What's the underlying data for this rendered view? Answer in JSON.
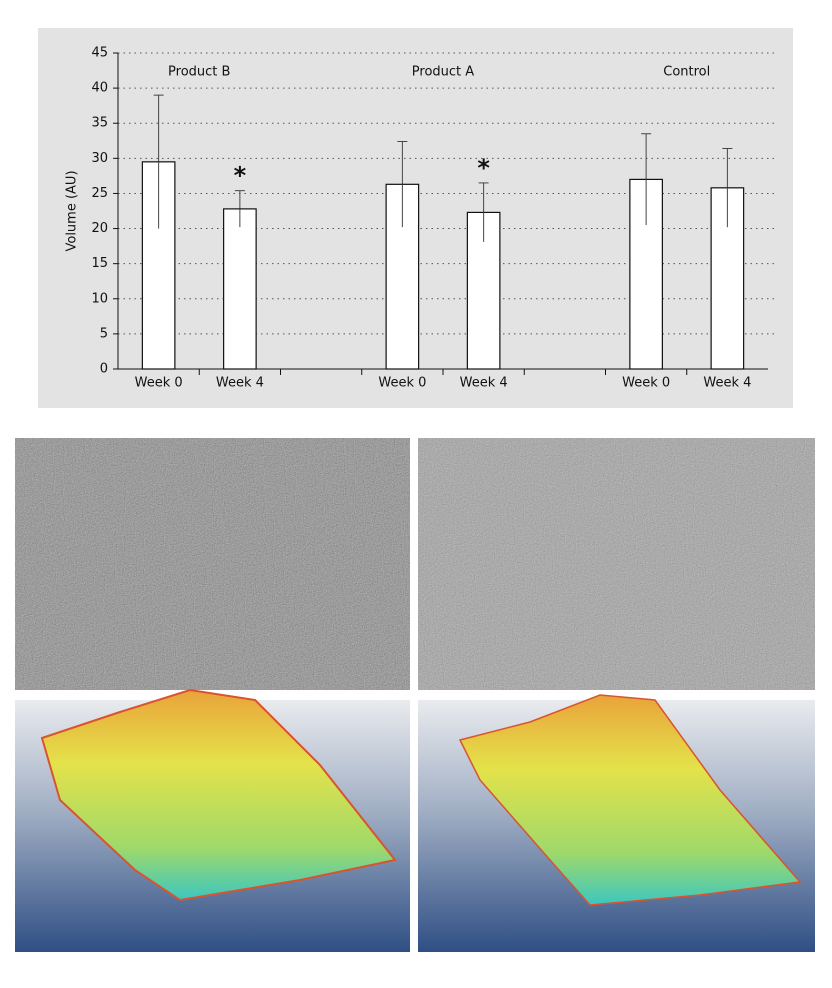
{
  "chart_data": {
    "type": "bar",
    "y_label": "Volume (AU)",
    "groups": [
      "Product  B",
      "Product A",
      "Control"
    ],
    "categories": [
      "Week 0",
      "Week 4",
      null,
      "Week 0",
      "Week 4",
      null,
      "Week 0",
      "Week 4"
    ],
    "values": [
      29.5,
      22.8,
      null,
      26.3,
      22.3,
      null,
      27,
      25.8
    ],
    "errors": [
      9.5,
      2.6,
      null,
      6.1,
      4.2,
      null,
      6.5,
      5.6
    ],
    "significance": [
      null,
      "*",
      null,
      null,
      "*",
      null,
      null,
      null
    ],
    "color": "#ffffff",
    "ylim": [
      0,
      45
    ],
    "yticks": [
      0,
      5,
      10,
      15,
      20,
      25,
      30,
      35,
      40,
      45
    ],
    "grid": true
  }
}
